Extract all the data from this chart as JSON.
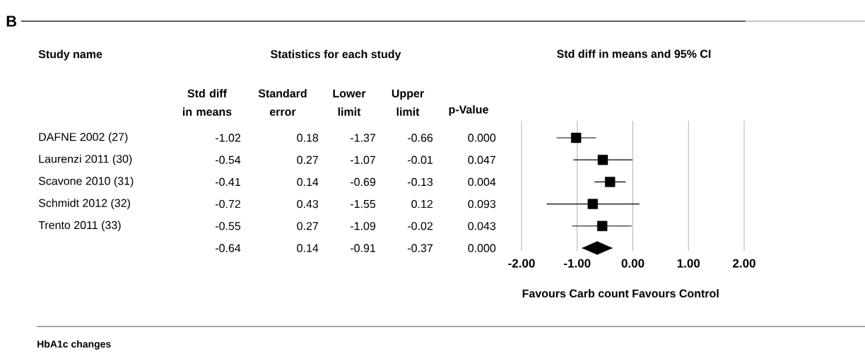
{
  "chart_data": [
    {
      "type": "other",
      "title": "Statistics for each study",
      "ylabel": "Study name",
      "categories": [
        "Std diff in means",
        "Standard error",
        "Lower limit",
        "Upper limit",
        "p-Value"
      ],
      "y_categories": [
        "DAFNE 2002 (27)",
        "Laurenzi 2011 (30)",
        "Scavone 2010 (31)",
        "Schmidt 2012 (32)",
        "Trento 2011 (33)",
        null
      ],
      "cell_labels": [
        [
          "-1.02",
          "0.18",
          "-1.37",
          "-0.66",
          "0.000"
        ],
        [
          "-0.54",
          "0.27",
          "-1.07",
          "-0.01",
          "0.047"
        ],
        [
          "-0.41",
          "0.14",
          "-0.69",
          "-0.13",
          "0.004"
        ],
        [
          "-0.72",
          "0.43",
          "-1.55",
          "0.12",
          "0.093"
        ],
        [
          "-0.55",
          "0.27",
          "-1.09",
          "-0.02",
          "0.043"
        ],
        [
          "-0.64",
          "0.14",
          "-0.91",
          "-0.37",
          "0.000"
        ]
      ],
      "annotations": [
        "B",
        "HbA1c changes"
      ]
    },
    {
      "type": "scatter",
      "orientation": "horizontal",
      "title": "Std diff in means and 95% CI",
      "categories": [
        null,
        null,
        null,
        null,
        null,
        null
      ],
      "series": [
        {
          "color": "#000000",
          "marker": "square",
          "values": [
            -1.02,
            -0.54,
            -0.41,
            -0.72,
            -0.55,
            null
          ],
          "errors": [
            [
              -1.37,
              -0.66
            ],
            [
              -1.07,
              -0.01
            ],
            [
              -0.69,
              -0.13
            ],
            [
              -1.55,
              0.12
            ],
            [
              -1.09,
              -0.02
            ],
            null
          ]
        },
        {
          "color": "#000000",
          "marker": "diamond",
          "values": [
            null,
            null,
            null,
            null,
            null,
            -0.64
          ],
          "errors": [
            null,
            null,
            null,
            null,
            null,
            [
              -0.91,
              -0.37
            ]
          ]
        }
      ],
      "xlim": [
        -2,
        2
      ],
      "xticks": [
        {
          "value": -2,
          "label": "-2.00"
        },
        {
          "value": -1,
          "label": "-1.00"
        },
        {
          "value": 0,
          "label": "0.00"
        },
        {
          "value": 1,
          "label": "1.00"
        },
        {
          "value": 2,
          "label": "2.00"
        }
      ],
      "grid": "x",
      "tick_labels": "x",
      "annotations": [
        "Favours Carb count",
        "Favours Control"
      ]
    }
  ]
}
